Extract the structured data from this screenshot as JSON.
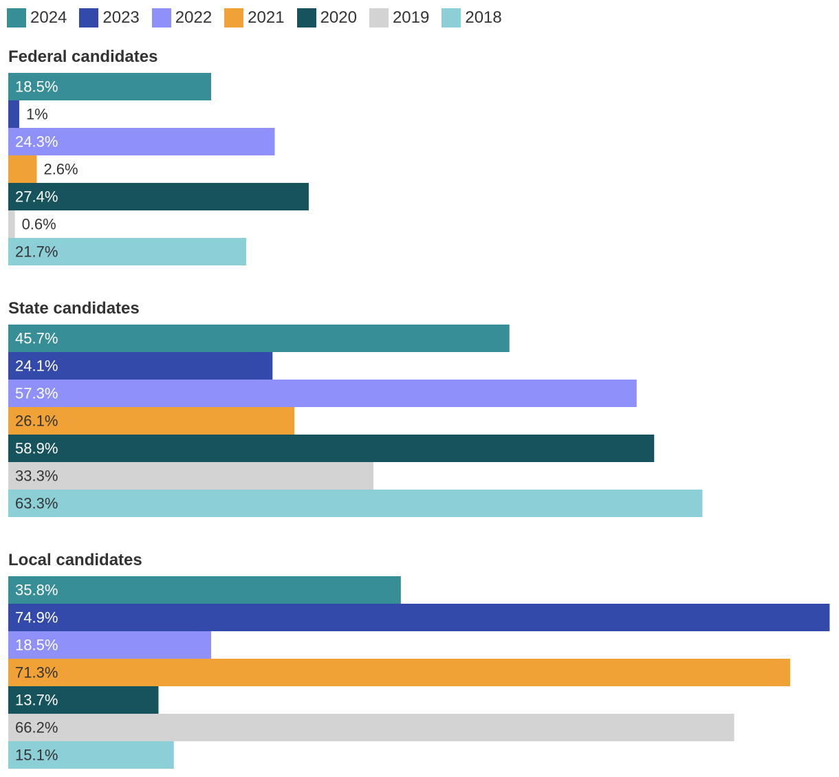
{
  "chart_data": {
    "type": "bar",
    "orientation": "horizontal",
    "title": "",
    "xlabel": "",
    "ylabel": "",
    "xlim": [
      0,
      75
    ],
    "grid": false,
    "legend_position": "top-left",
    "series": [
      {
        "name": "2024",
        "color": "#388e97",
        "label_color": "#ffffff"
      },
      {
        "name": "2023",
        "color": "#344aaa",
        "label_color": "#ffffff"
      },
      {
        "name": "2022",
        "color": "#9090fa",
        "label_color": "#ffffff"
      },
      {
        "name": "2021",
        "color": "#f0a236",
        "label_color": "#333333"
      },
      {
        "name": "2020",
        "color": "#16535d",
        "label_color": "#ffffff"
      },
      {
        "name": "2019",
        "color": "#d3d3d3",
        "label_color": "#333333"
      },
      {
        "name": "2018",
        "color": "#8dcfd7",
        "label_color": "#333333"
      }
    ],
    "groups": [
      {
        "name": "Federal candidates",
        "values": [
          18.5,
          1,
          24.3,
          2.6,
          27.4,
          0.6,
          21.7
        ],
        "labels": [
          "18.5%",
          "1%",
          "24.3%",
          "2.6%",
          "27.4%",
          "0.6%",
          "21.7%"
        ]
      },
      {
        "name": "State candidates",
        "values": [
          45.7,
          24.1,
          57.3,
          26.1,
          58.9,
          33.3,
          63.3
        ],
        "labels": [
          "45.7%",
          "24.1%",
          "57.3%",
          "26.1%",
          "58.9%",
          "33.3%",
          "63.3%"
        ]
      },
      {
        "name": "Local candidates",
        "values": [
          35.8,
          74.9,
          18.5,
          71.3,
          13.7,
          66.2,
          15.1
        ],
        "labels": [
          "35.8%",
          "74.9%",
          "18.5%",
          "71.3%",
          "13.7%",
          "66.2%",
          "15.1%"
        ]
      }
    ]
  }
}
